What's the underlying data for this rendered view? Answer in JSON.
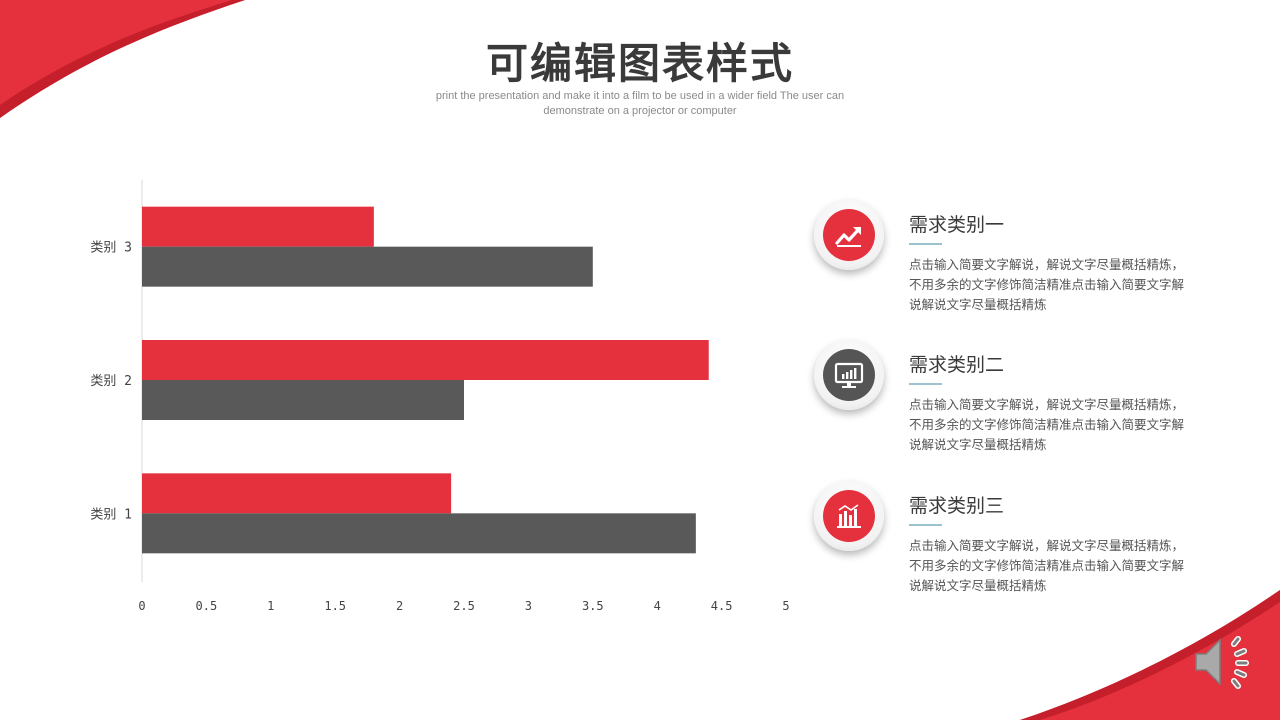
{
  "header": {
    "title": "可编辑图表样式",
    "subtitle": "print the presentation and make it into a film to be used in a wider field The user can demonstrate on a projector or computer"
  },
  "colors": {
    "accent": "#e5313d",
    "dark": "#595959",
    "rule": "#9bc3cf"
  },
  "chart_data": {
    "type": "bar",
    "orientation": "horizontal",
    "categories": [
      "类别 1",
      "类别 2",
      "类别 3"
    ],
    "series": [
      {
        "values": [
          2.4,
          4.4,
          1.8
        ],
        "color": "#e5313d"
      },
      {
        "values": [
          4.3,
          2.5,
          3.5
        ],
        "color": "#595959"
      }
    ],
    "xticks": [
      "0",
      "0.5",
      "1",
      "1.5",
      "2",
      "2.5",
      "3",
      "3.5",
      "4",
      "4.5",
      "5"
    ],
    "xlim": [
      0,
      5
    ],
    "grid": false,
    "legend": "none"
  },
  "items": [
    {
      "title": "需求类别一",
      "desc": "点击输入简要文字解说，解说文字尽量概括精炼，不用多余的文字修饰简洁精准点击输入简要文字解说解说文字尽量概括精炼",
      "icon": "trend-up-icon"
    },
    {
      "title": "需求类别二",
      "desc": "点击输入简要文字解说，解说文字尽量概括精炼，不用多余的文字修饰简洁精准点击输入简要文字解说解说文字尽量概括精炼",
      "icon": "monitor-chart-icon"
    },
    {
      "title": "需求类别三",
      "desc": "点击输入简要文字解说，解说文字尽量概括精炼，不用多余的文字修饰简洁精准点击输入简要文字解说解说文字尽量概括精炼",
      "icon": "bar-chart-icon"
    }
  ],
  "speaker": {
    "icon": "speaker-icon"
  }
}
